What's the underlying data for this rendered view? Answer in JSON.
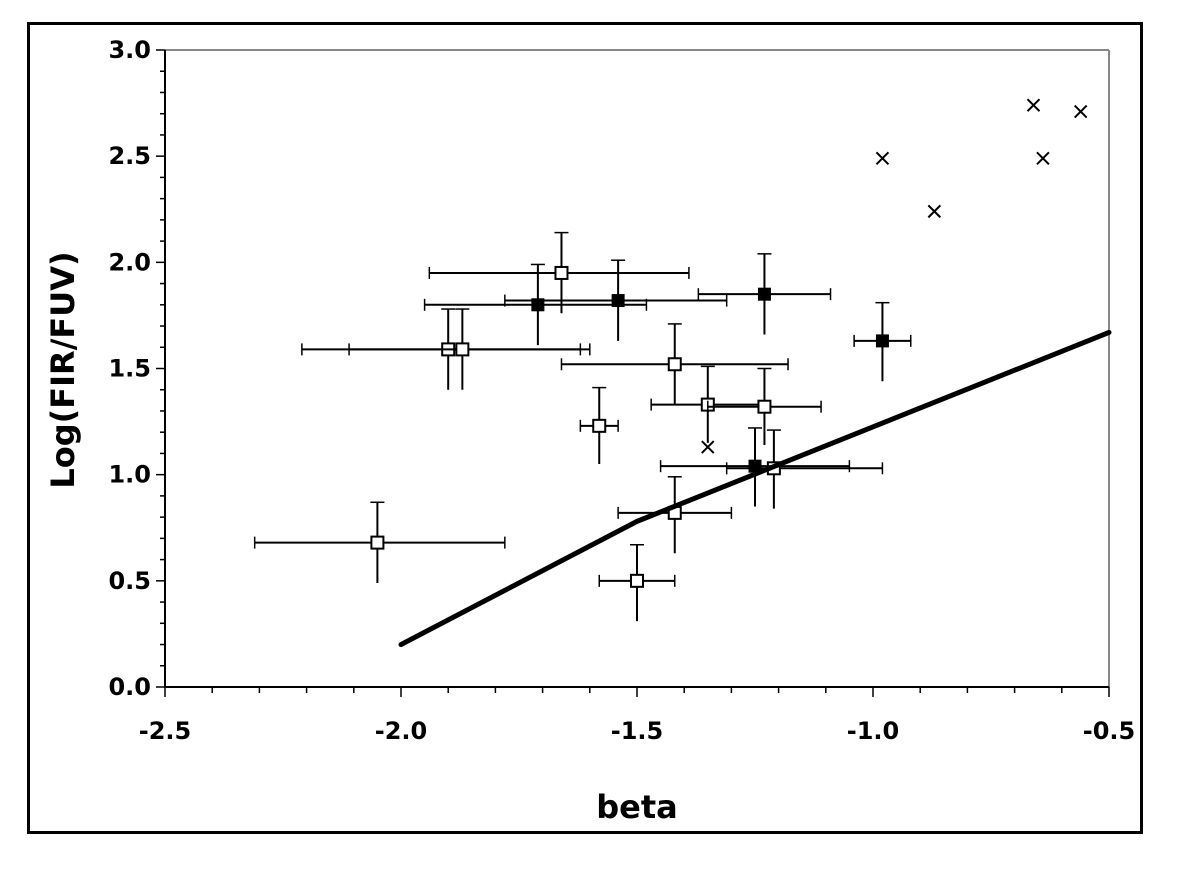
{
  "chart_data": {
    "type": "scatter",
    "title": "",
    "xlabel": "beta",
    "ylabel": "Log(FIR/FUV)",
    "xlim": [
      -2.5,
      -0.5
    ],
    "ylim": [
      0.0,
      3.0
    ],
    "x_ticks": [
      "-2.5",
      "-2.0",
      "-1.5",
      "-1.0",
      "-0.5"
    ],
    "y_ticks": [
      "0.0",
      "0.5",
      "1.0",
      "1.5",
      "2.0",
      "2.5",
      "3.0"
    ],
    "x_tick_values": [
      -2.5,
      -2.0,
      -1.5,
      -1.0,
      -0.5
    ],
    "y_tick_values": [
      0.0,
      0.5,
      1.0,
      1.5,
      2.0,
      2.5,
      3.0
    ],
    "grid": false,
    "legend": "none",
    "series": [
      {
        "marker": "open-square",
        "points": [
          {
            "x": -2.05,
            "y": 0.68,
            "xerr": [
              0.26,
              0.27
            ],
            "yerr": [
              0.19,
              0.19
            ]
          },
          {
            "x": -1.9,
            "y": 1.59,
            "xerr": [
              0.31,
              0.28
            ],
            "yerr": [
              0.19,
              0.19
            ]
          },
          {
            "x": -1.87,
            "y": 1.59,
            "xerr": [
              0.24,
              0.27
            ],
            "yerr": [
              0.19,
              0.19
            ]
          },
          {
            "x": -1.66,
            "y": 1.95,
            "xerr": [
              0.28,
              0.27
            ],
            "yerr": [
              0.19,
              0.19
            ]
          },
          {
            "x": -1.58,
            "y": 1.23,
            "xerr": [
              0.04,
              0.04
            ],
            "yerr": [
              0.18,
              0.18
            ]
          },
          {
            "x": -1.5,
            "y": 0.5,
            "xerr": [
              0.08,
              0.08
            ],
            "yerr": [
              0.19,
              0.17
            ]
          },
          {
            "x": -1.42,
            "y": 1.52,
            "xerr": [
              0.24,
              0.24
            ],
            "yerr": [
              0.19,
              0.19
            ]
          },
          {
            "x": -1.42,
            "y": 0.82,
            "xerr": [
              0.12,
              0.12
            ],
            "yerr": [
              0.19,
              0.17
            ]
          },
          {
            "x": -1.35,
            "y": 1.33,
            "xerr": [
              0.12,
              0.12
            ],
            "yerr": [
              0.18,
              0.18
            ]
          },
          {
            "x": -1.23,
            "y": 1.32,
            "xerr": [
              0.12,
              0.12
            ],
            "yerr": [
              0.18,
              0.18
            ]
          },
          {
            "x": -1.21,
            "y": 1.03,
            "xerr": [
              0.1,
              0.23
            ],
            "yerr": [
              0.19,
              0.18
            ]
          }
        ]
      },
      {
        "marker": "filled-square",
        "points": [
          {
            "x": -1.71,
            "y": 1.8,
            "xerr": [
              0.24,
              0.23
            ],
            "yerr": [
              0.19,
              0.19
            ]
          },
          {
            "x": -1.54,
            "y": 1.82,
            "xerr": [
              0.24,
              0.23
            ],
            "yerr": [
              0.19,
              0.19
            ]
          },
          {
            "x": -1.23,
            "y": 1.85,
            "xerr": [
              0.14,
              0.14
            ],
            "yerr": [
              0.19,
              0.19
            ]
          },
          {
            "x": -0.98,
            "y": 1.63,
            "xerr": [
              0.06,
              0.06
            ],
            "yerr": [
              0.19,
              0.18
            ]
          },
          {
            "x": -1.25,
            "y": 1.04,
            "xerr": [
              0.2,
              0.2
            ],
            "yerr": [
              0.19,
              0.18
            ]
          }
        ]
      },
      {
        "marker": "cross",
        "points": [
          {
            "x": -1.35,
            "y": 1.13
          },
          {
            "x": -0.98,
            "y": 2.49
          },
          {
            "x": -0.87,
            "y": 2.24
          },
          {
            "x": -0.66,
            "y": 2.74
          },
          {
            "x": -0.64,
            "y": 2.49
          },
          {
            "x": -0.56,
            "y": 2.71
          }
        ]
      },
      {
        "type": "line",
        "x": [
          -2.0,
          -1.5,
          -0.5
        ],
        "y": [
          0.2,
          0.78,
          1.67
        ]
      }
    ]
  }
}
